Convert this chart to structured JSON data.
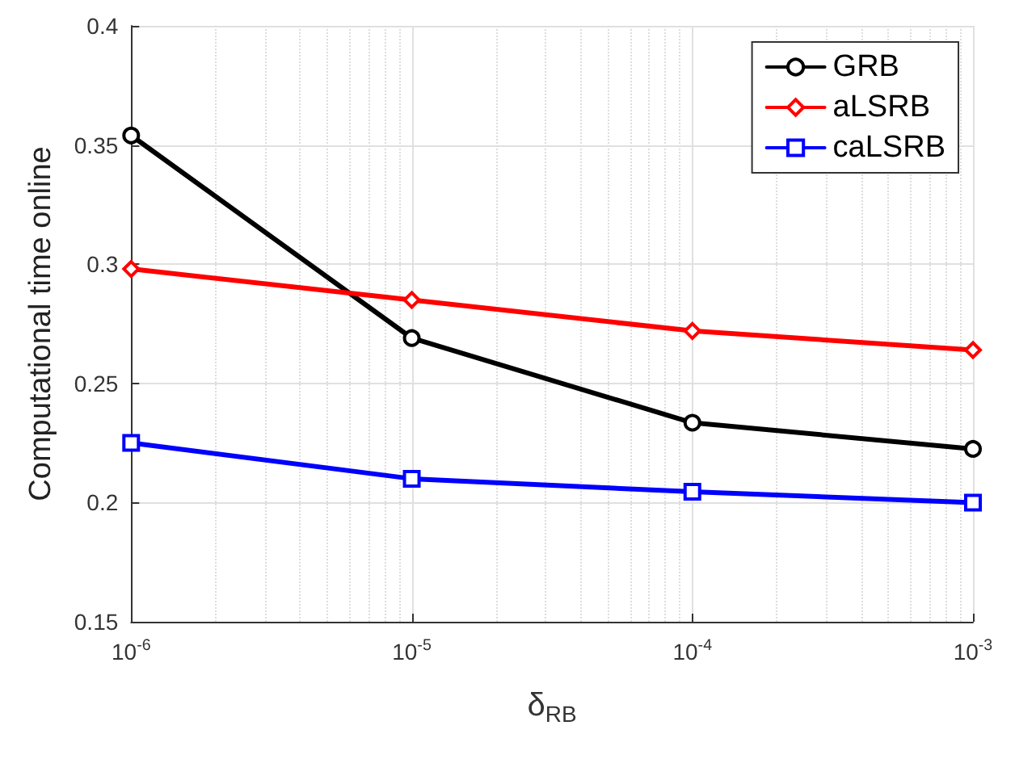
{
  "chart_data": {
    "type": "line",
    "xlabel": "δ$_{RB}$",
    "ylabel": "Computational time online",
    "x": [
      1e-06,
      1e-05,
      0.0001,
      0.001
    ],
    "series": [
      {
        "name": "GRB",
        "color": "#000000",
        "marker": "circle",
        "values": [
          0.354,
          0.269,
          0.2335,
          0.2225
        ]
      },
      {
        "name": "aLSRB",
        "color": "#ff0000",
        "marker": "diamond",
        "values": [
          0.298,
          0.285,
          0.272,
          0.264
        ]
      },
      {
        "name": "caLSRB",
        "color": "#0000ff",
        "marker": "square",
        "values": [
          0.225,
          0.21,
          0.2045,
          0.2
        ]
      }
    ],
    "log": "x",
    "xlim": [
      1e-06,
      0.001
    ],
    "xticks": [
      {
        "value": 1e-06,
        "label": "10$^{-6}$"
      },
      {
        "value": 1e-05,
        "label": "10$^{-5}$"
      },
      {
        "value": 0.0001,
        "label": "10$^{-4}$"
      },
      {
        "value": 0.001,
        "label": "10$^{-3}$"
      }
    ],
    "ylim": [
      0.15,
      0.4
    ],
    "yticks": [
      0.15,
      0.2,
      0.25,
      0.3,
      0.35,
      0.4
    ],
    "grid": true,
    "legend": "top right",
    "line_style": "solid"
  }
}
